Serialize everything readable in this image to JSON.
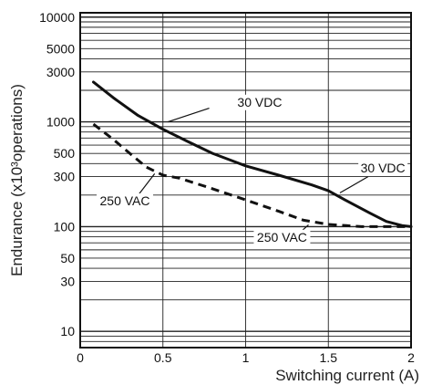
{
  "chart_data": {
    "type": "line",
    "title": "",
    "xlabel": "Switching current (A)",
    "ylabel": "Endurance (x10³operations)",
    "x_scale": "linear",
    "y_scale": "log",
    "xlim": [
      0,
      2
    ],
    "ylim": [
      7,
      11000
    ],
    "x_ticks": [
      {
        "value": 0,
        "label": "0"
      },
      {
        "value": 0.5,
        "label": "0.5"
      },
      {
        "value": 1,
        "label": "1"
      },
      {
        "value": 1.5,
        "label": "1.5"
      },
      {
        "value": 2,
        "label": "2"
      }
    ],
    "y_ticks": [
      {
        "value": 10,
        "label": "10"
      },
      {
        "value": 30,
        "label": "30"
      },
      {
        "value": 50,
        "label": "50"
      },
      {
        "value": 100,
        "label": "100"
      },
      {
        "value": 300,
        "label": "300"
      },
      {
        "value": 500,
        "label": "500"
      },
      {
        "value": 1000,
        "label": "1000"
      },
      {
        "value": 3000,
        "label": "3000"
      },
      {
        "value": 5000,
        "label": "5000"
      },
      {
        "value": 10000,
        "label": "10000"
      }
    ],
    "grid": true,
    "series": [
      {
        "name": "30 VDC",
        "style": "solid",
        "color": "#111111",
        "points": [
          [
            0.08,
            2400
          ],
          [
            0.2,
            1700
          ],
          [
            0.35,
            1150
          ],
          [
            0.5,
            850
          ],
          [
            0.65,
            650
          ],
          [
            0.8,
            500
          ],
          [
            1.0,
            380
          ],
          [
            1.2,
            310
          ],
          [
            1.4,
            250
          ],
          [
            1.5,
            220
          ],
          [
            1.6,
            180
          ],
          [
            1.75,
            135
          ],
          [
            1.85,
            112
          ],
          [
            1.95,
            102
          ],
          [
            2.0,
            100
          ]
        ]
      },
      {
        "name": "250 VAC",
        "style": "dashed",
        "color": "#111111",
        "points": [
          [
            0.08,
            950
          ],
          [
            0.2,
            680
          ],
          [
            0.3,
            500
          ],
          [
            0.4,
            370
          ],
          [
            0.5,
            310
          ],
          [
            0.6,
            290
          ],
          [
            0.8,
            230
          ],
          [
            1.0,
            180
          ],
          [
            1.2,
            140
          ],
          [
            1.35,
            115
          ],
          [
            1.5,
            105
          ],
          [
            1.7,
            100
          ],
          [
            1.85,
            100
          ],
          [
            2.0,
            100
          ]
        ]
      }
    ],
    "annotations": [
      {
        "text": "30 VDC",
        "series": 0,
        "x": 0.95,
        "y": 1400
      },
      {
        "text": "30 VDC",
        "series": 0,
        "x": 1.83,
        "y": 330
      },
      {
        "text": "250 VAC",
        "series": 1,
        "x": 0.27,
        "y": 160
      },
      {
        "text": "250 VAC",
        "series": 1,
        "x": 1.22,
        "y": 72
      }
    ]
  }
}
